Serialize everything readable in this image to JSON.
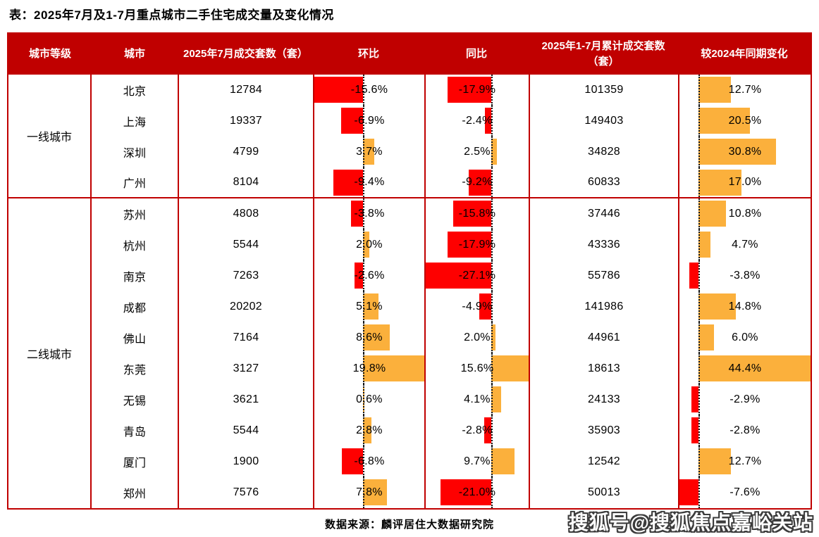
{
  "title": "表：2025年7月及1-7月重点城市二手住宅成交量及变化情况",
  "table": {
    "headers": [
      "城市等级",
      "城市",
      "2025年7月成交套数（套）",
      "环比",
      "同比",
      "2025年1-7月累计成交套数（套）",
      "较2024年同期变化"
    ],
    "tiers": [
      {
        "label": "一线城市",
        "rowspan": 4
      },
      {
        "label": "二线城市",
        "rowspan": 10
      }
    ],
    "rows": [
      {
        "city": "北京",
        "jul": "12784",
        "mom": "-15.6%",
        "mom_v": -15.6,
        "yoy": "-17.9%",
        "yoy_v": -17.9,
        "cum": "101359",
        "chg": "12.7%",
        "chg_v": 12.7
      },
      {
        "city": "上海",
        "jul": "19337",
        "mom": "-6.9%",
        "mom_v": -6.9,
        "yoy": "-2.4%",
        "yoy_v": -2.4,
        "cum": "149403",
        "chg": "20.5%",
        "chg_v": 20.5
      },
      {
        "city": "深圳",
        "jul": "4799",
        "mom": "3.7%",
        "mom_v": 3.7,
        "yoy": "2.5%",
        "yoy_v": 2.5,
        "cum": "34828",
        "chg": "30.8%",
        "chg_v": 30.8
      },
      {
        "city": "广州",
        "jul": "8104",
        "mom": "-9.4%",
        "mom_v": -9.4,
        "yoy": "-9.2%",
        "yoy_v": -9.2,
        "cum": "60833",
        "chg": "17.0%",
        "chg_v": 17.0
      },
      {
        "city": "苏州",
        "jul": "4808",
        "mom": "-3.8%",
        "mom_v": -3.8,
        "yoy": "-15.8%",
        "yoy_v": -15.8,
        "cum": "37446",
        "chg": "10.8%",
        "chg_v": 10.8
      },
      {
        "city": "杭州",
        "jul": "5544",
        "mom": "2.0%",
        "mom_v": 2.0,
        "yoy": "-17.9%",
        "yoy_v": -17.9,
        "cum": "43336",
        "chg": "4.7%",
        "chg_v": 4.7
      },
      {
        "city": "南京",
        "jul": "7263",
        "mom": "-2.6%",
        "mom_v": -2.6,
        "yoy": "-27.1%",
        "yoy_v": -27.1,
        "cum": "55786",
        "chg": "-3.8%",
        "chg_v": -3.8
      },
      {
        "city": "成都",
        "jul": "20202",
        "mom": "5.1%",
        "mom_v": 5.1,
        "yoy": "-4.9%",
        "yoy_v": -4.9,
        "cum": "141986",
        "chg": "14.8%",
        "chg_v": 14.8
      },
      {
        "city": "佛山",
        "jul": "7164",
        "mom": "8.6%",
        "mom_v": 8.6,
        "yoy": "2.0%",
        "yoy_v": 2.0,
        "cum": "44961",
        "chg": "6.0%",
        "chg_v": 6.0
      },
      {
        "city": "东莞",
        "jul": "3127",
        "mom": "19.8%",
        "mom_v": 19.8,
        "yoy": "15.6%",
        "yoy_v": 15.6,
        "cum": "18613",
        "chg": "44.4%",
        "chg_v": 44.4
      },
      {
        "city": "无锡",
        "jul": "3621",
        "mom": "0.6%",
        "mom_v": 0.6,
        "yoy": "4.1%",
        "yoy_v": 4.1,
        "cum": "24133",
        "chg": "-2.9%",
        "chg_v": -2.9
      },
      {
        "city": "青岛",
        "jul": "5544",
        "mom": "2.8%",
        "mom_v": 2.8,
        "yoy": "-2.8%",
        "yoy_v": -2.8,
        "cum": "35903",
        "chg": "-2.8%",
        "chg_v": -2.8
      },
      {
        "city": "厦门",
        "jul": "1900",
        "mom": "-6.8%",
        "mom_v": -6.8,
        "yoy": "9.7%",
        "yoy_v": 9.7,
        "cum": "12542",
        "chg": "12.7%",
        "chg_v": 12.7
      },
      {
        "city": "郑州",
        "jul": "7576",
        "mom": "7.8%",
        "mom_v": 7.8,
        "yoy": "-21.0%",
        "yoy_v": -21.0,
        "cum": "50013",
        "chg": "-7.6%",
        "chg_v": -7.6
      }
    ]
  },
  "footer": {
    "source": "数据来源：麟评居住大数据研究院"
  },
  "watermark": "搜狐号@搜狐焦点嘉峪关站",
  "colors": {
    "header_bg": "#C00000",
    "border": "#C00000",
    "header_text": "#FFFFFF",
    "bar_negative": "#FE0000",
    "bar_positive": "#FBB03C",
    "text": "#000000"
  },
  "chart_data": {
    "type": "table",
    "title": "表：2025年7月及1-7月重点城市二手住宅成交量及变化情况",
    "columns": [
      "城市等级",
      "城市",
      "2025年7月成交套数（套）",
      "环比",
      "同比",
      "2025年1-7月累计成交套数（套）",
      "较2024年同期变化"
    ],
    "rows": [
      [
        "一线城市",
        "北京",
        12784,
        -15.6,
        -17.9,
        101359,
        12.7
      ],
      [
        "一线城市",
        "上海",
        19337,
        -6.9,
        -2.4,
        149403,
        20.5
      ],
      [
        "一线城市",
        "深圳",
        4799,
        3.7,
        2.5,
        34828,
        30.8
      ],
      [
        "一线城市",
        "广州",
        8104,
        -9.4,
        -9.2,
        60833,
        17.0
      ],
      [
        "二线城市",
        "苏州",
        4808,
        -3.8,
        -15.8,
        37446,
        10.8
      ],
      [
        "二线城市",
        "杭州",
        5544,
        2.0,
        -17.9,
        43336,
        4.7
      ],
      [
        "二线城市",
        "南京",
        7263,
        -2.6,
        -27.1,
        55786,
        -3.8
      ],
      [
        "二线城市",
        "成都",
        20202,
        5.1,
        -4.9,
        141986,
        14.8
      ],
      [
        "二线城市",
        "佛山",
        7164,
        8.6,
        2.0,
        44961,
        6.0
      ],
      [
        "二线城市",
        "东莞",
        3127,
        19.8,
        15.6,
        18613,
        44.4
      ],
      [
        "二线城市",
        "无锡",
        3621,
        0.6,
        4.1,
        24133,
        -2.9
      ],
      [
        "二线城市",
        "青岛",
        5544,
        2.8,
        -2.8,
        35903,
        -2.8
      ],
      [
        "二线城市",
        "厦门",
        1900,
        -6.8,
        9.7,
        12542,
        12.7
      ],
      [
        "二线城市",
        "郑州",
        7576,
        7.8,
        -21.0,
        50013,
        -7.6
      ]
    ],
    "bar_scales": {
      "mom": {
        "min": -15.6,
        "max": 19.8
      },
      "yoy": {
        "min": -27.1,
        "max": 15.6
      },
      "chg": {
        "min": -7.6,
        "max": 44.4
      }
    },
    "bar_style": "excel-data-bars: red bars left of dotted zero axis for negative values, orange bars right for positive values; bars scaled to each column min/max",
    "source": "数据来源：麟评居住大数据研究院"
  }
}
